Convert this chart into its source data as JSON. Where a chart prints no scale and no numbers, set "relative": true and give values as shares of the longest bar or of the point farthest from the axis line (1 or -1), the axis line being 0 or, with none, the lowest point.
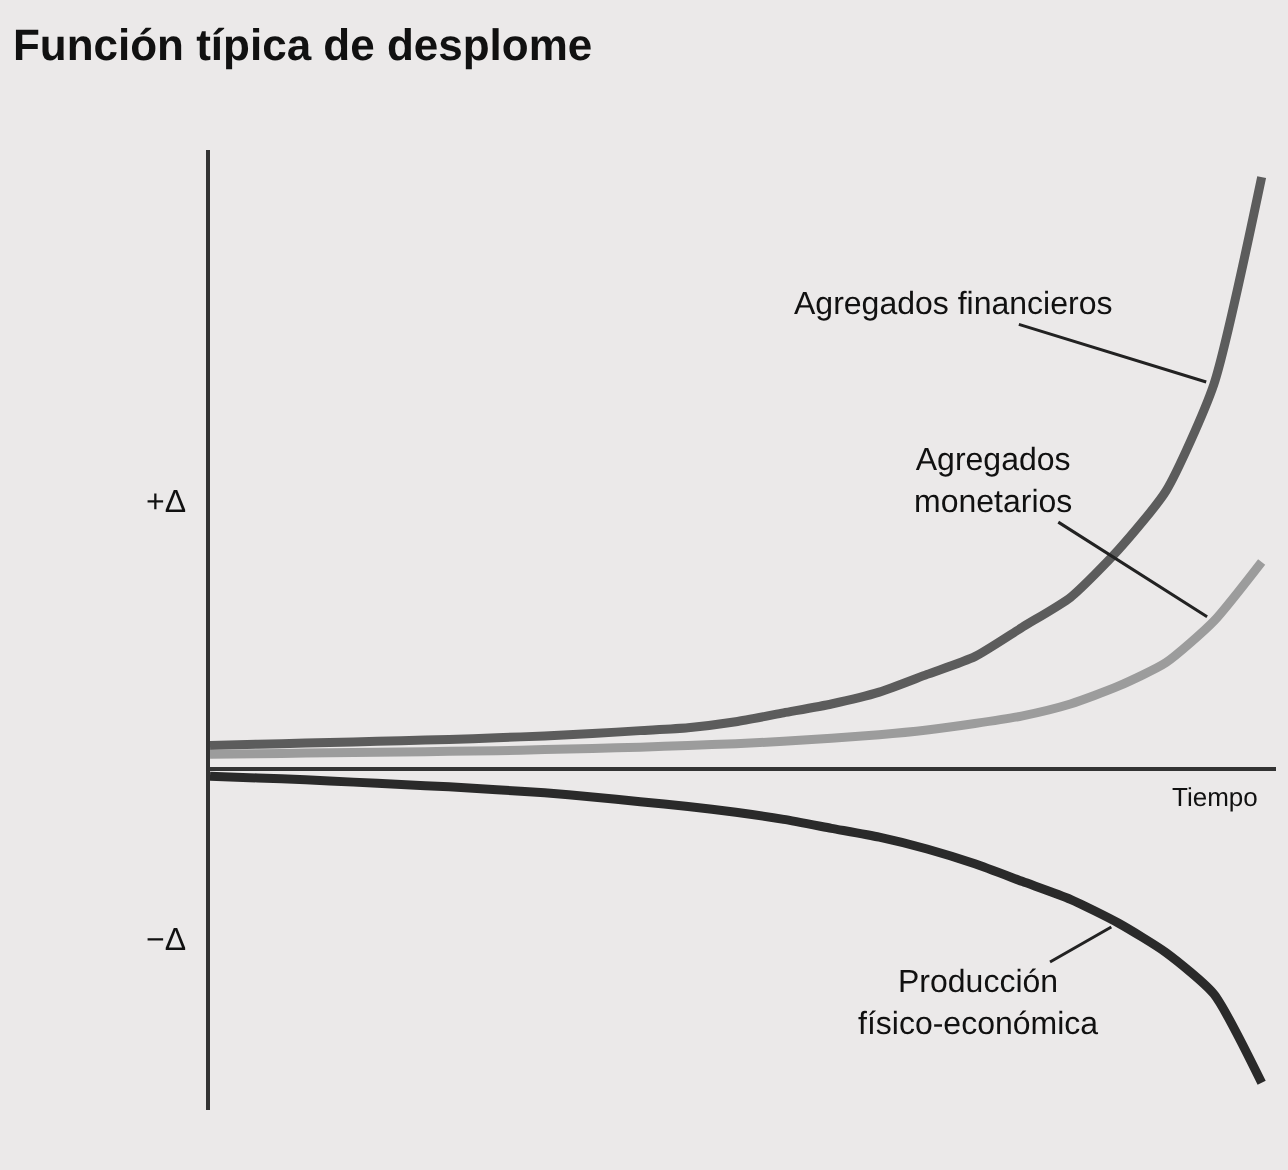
{
  "chart_data": {
    "type": "line",
    "title": "Función típica de desplome",
    "xlabel": "Tiempo",
    "relative": true,
    "grid": false,
    "marker": "none",
    "line_style": "solid",
    "categories": [
      null,
      null,
      null,
      null,
      null,
      null,
      null,
      null,
      null,
      null,
      null,
      null,
      null,
      null,
      null,
      null,
      null,
      null,
      null,
      null,
      null,
      null,
      null
    ],
    "series": [
      {
        "color": "#5c5c5c",
        "values": [
          0.04,
          0.042,
          0.044,
          0.046,
          0.048,
          0.05,
          0.053,
          0.056,
          0.06,
          0.065,
          0.07,
          0.08,
          0.095,
          0.11,
          0.13,
          0.16,
          0.19,
          0.24,
          0.29,
          0.37,
          0.47,
          0.65,
          1.0
        ]
      },
      {
        "color": "#9c9c9c",
        "values": [
          0.025,
          0.026,
          0.027,
          0.028,
          0.029,
          0.03,
          0.031,
          0.033,
          0.035,
          0.037,
          0.04,
          0.043,
          0.047,
          0.052,
          0.058,
          0.066,
          0.077,
          0.09,
          0.11,
          0.14,
          0.18,
          0.25,
          0.35
        ]
      },
      {
        "color": "#2a2a2a",
        "values": [
          -0.012,
          -0.015,
          -0.018,
          -0.022,
          -0.026,
          -0.03,
          -0.035,
          -0.04,
          -0.047,
          -0.055,
          -0.063,
          -0.073,
          -0.085,
          -0.1,
          -0.115,
          -0.135,
          -0.16,
          -0.19,
          -0.22,
          -0.26,
          -0.31,
          -0.38,
          -0.53
        ]
      }
    ],
    "annotations": [
      "Agregados financieros",
      "Agregados\nmonetarios",
      "Producción\nfísico-económica",
      "+Δ",
      "−Δ"
    ]
  }
}
